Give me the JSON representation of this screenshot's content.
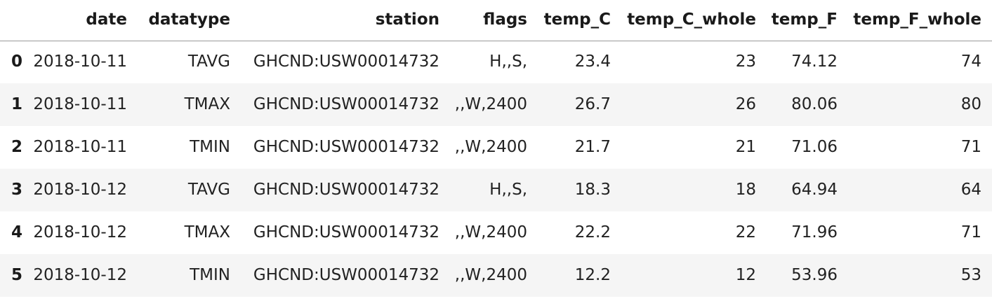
{
  "table": {
    "columns": [
      "",
      "date",
      "datatype",
      "station",
      "flags",
      "temp_C",
      "temp_C_whole",
      "temp_F",
      "temp_F_whole"
    ],
    "rows": [
      {
        "index": "0",
        "date": "2018-10-11",
        "datatype": "TAVG",
        "station": "GHCND:USW00014732",
        "flags": "H,,S,",
        "temp_C": "23.4",
        "temp_C_whole": "23",
        "temp_F": "74.12",
        "temp_F_whole": "74"
      },
      {
        "index": "1",
        "date": "2018-10-11",
        "datatype": "TMAX",
        "station": "GHCND:USW00014732",
        "flags": ",,W,2400",
        "temp_C": "26.7",
        "temp_C_whole": "26",
        "temp_F": "80.06",
        "temp_F_whole": "80"
      },
      {
        "index": "2",
        "date": "2018-10-11",
        "datatype": "TMIN",
        "station": "GHCND:USW00014732",
        "flags": ",,W,2400",
        "temp_C": "21.7",
        "temp_C_whole": "21",
        "temp_F": "71.06",
        "temp_F_whole": "71"
      },
      {
        "index": "3",
        "date": "2018-10-12",
        "datatype": "TAVG",
        "station": "GHCND:USW00014732",
        "flags": "H,,S,",
        "temp_C": "18.3",
        "temp_C_whole": "18",
        "temp_F": "64.94",
        "temp_F_whole": "64"
      },
      {
        "index": "4",
        "date": "2018-10-12",
        "datatype": "TMAX",
        "station": "GHCND:USW00014732",
        "flags": ",,W,2400",
        "temp_C": "22.2",
        "temp_C_whole": "22",
        "temp_F": "71.96",
        "temp_F_whole": "71"
      },
      {
        "index": "5",
        "date": "2018-10-12",
        "datatype": "TMIN",
        "station": "GHCND:USW00014732",
        "flags": ",,W,2400",
        "temp_C": "12.2",
        "temp_C_whole": "12",
        "temp_F": "53.96",
        "temp_F_whole": "53"
      }
    ]
  }
}
